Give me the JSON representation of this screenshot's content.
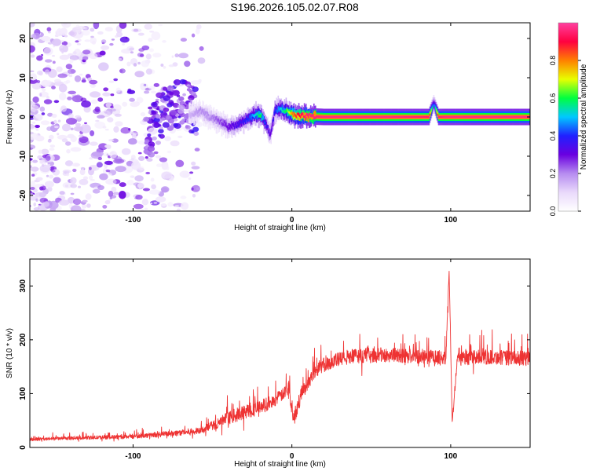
{
  "figure": {
    "title": "S196.2026.105.02.07.R08"
  },
  "chart_data": [
    {
      "type": "heatmap",
      "xlabel": "Height of straight line (km)",
      "ylabel": "Frequency (Hz)",
      "xlim": [
        -165,
        150
      ],
      "ylim": [
        -24,
        24
      ],
      "x_ticks": [
        -100,
        0,
        100
      ],
      "y_ticks": [
        -20,
        -10,
        0,
        10,
        20
      ],
      "x_tick_labels": [
        "-100",
        "0",
        "100"
      ],
      "y_tick_labels": [
        "-20",
        "-10",
        "0",
        "10",
        "20"
      ],
      "colorbar": {
        "label": "Normalized spectral amplitude",
        "range": [
          0,
          1
        ],
        "ticks": [
          0,
          0.2,
          0.4,
          0.6,
          0.8
        ],
        "tick_labels": [
          "0.0",
          "0.2",
          "0.4",
          "0.6",
          "0.8"
        ],
        "colormap": [
          "#ffffff",
          "#e9d9fb",
          "#b68cf0",
          "#6a00e0",
          "#2020ff",
          "#00c8ff",
          "#00ff40",
          "#e8ff00",
          "#ff8000",
          "#ff0040",
          "#ff40a0"
        ]
      },
      "ridge": {
        "x": [
          -65,
          -58,
          -52,
          -46,
          -40,
          -34,
          -28,
          -24,
          -20,
          -17,
          -14,
          -11,
          -8,
          -4,
          0,
          4,
          8,
          20,
          60,
          86,
          89,
          92,
          96,
          120,
          150
        ],
        "frequency": [
          0.5,
          1.5,
          0,
          -1,
          -2.5,
          -1.8,
          -0.5,
          0.5,
          0.5,
          -1.5,
          -4.5,
          1.5,
          2,
          1.5,
          0.5,
          0.2,
          0.2,
          0,
          0,
          0,
          3.5,
          0,
          0,
          0,
          0
        ],
        "amplitude": [
          0.15,
          0.2,
          0.2,
          0.25,
          0.3,
          0.35,
          0.4,
          0.5,
          0.6,
          0.4,
          0.3,
          0.4,
          0.5,
          0.6,
          0.8,
          0.9,
          0.95,
          0.97,
          0.97,
          0.95,
          0.35,
          0.95,
          0.97,
          0.97,
          0.97
        ]
      },
      "noise_region_x": [
        -165,
        -62
      ]
    },
    {
      "type": "line",
      "xlabel": "Height of straight line (km)",
      "ylabel": "SNR (10 * v/v)",
      "xlim": [
        -165,
        150
      ],
      "ylim": [
        0,
        350
      ],
      "x_ticks": [
        -100,
        0,
        100
      ],
      "y_ticks": [
        0,
        100,
        200,
        300
      ],
      "x_tick_labels": [
        "-100",
        "0",
        "100"
      ],
      "y_tick_labels": [
        "0",
        "100",
        "200",
        "300"
      ],
      "series": [
        {
          "color": "#ee3333",
          "trend_x": [
            -165,
            -130,
            -100,
            -80,
            -60,
            -50,
            -40,
            -30,
            -20,
            -12,
            -5,
            -2,
            1,
            6,
            15,
            25,
            40,
            60,
            90,
            97,
            99,
            101,
            104,
            120,
            150
          ],
          "trend_y": [
            15,
            18,
            20,
            25,
            30,
            40,
            55,
            65,
            75,
            85,
            100,
            115,
            50,
            100,
            145,
            160,
            170,
            172,
            168,
            165,
            330,
            45,
            165,
            168,
            165
          ],
          "noise_amplitude": [
            5,
            6,
            7,
            9,
            12,
            16,
            22,
            25,
            25,
            22,
            20,
            25,
            25,
            25,
            25,
            25,
            25,
            25,
            25,
            25,
            10,
            10,
            25,
            25,
            25
          ]
        }
      ]
    }
  ]
}
